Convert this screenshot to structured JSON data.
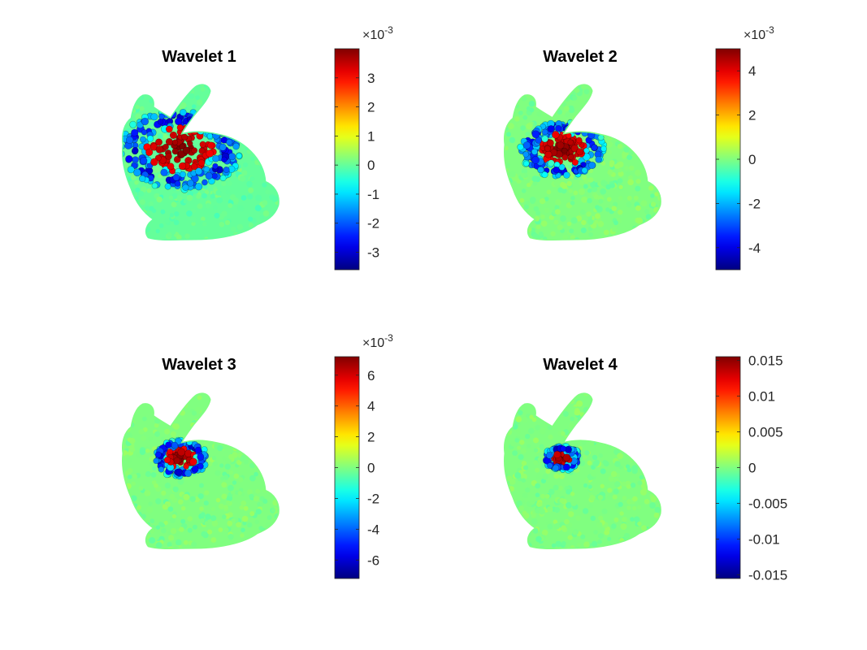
{
  "chart_data": [
    {
      "type": "scatter",
      "title": "Wavelet 1",
      "colormap": "jet",
      "colorbar": {
        "exponent": "-3",
        "lim": [
          -3.6,
          4.0
        ],
        "ticks": [
          -3,
          -2,
          -1,
          0,
          1,
          2,
          3
        ],
        "tick_labels": [
          "-3",
          "-2",
          "-1",
          "0",
          "1",
          "2",
          "3"
        ]
      },
      "hotspot": {
        "location": "back of neck",
        "peak": 4.0,
        "spread": "wide"
      }
    },
    {
      "type": "scatter",
      "title": "Wavelet 2",
      "colormap": "jet",
      "colorbar": {
        "exponent": "-3",
        "lim": [
          -5.0,
          5.0
        ],
        "ticks": [
          -4,
          -2,
          0,
          2,
          4
        ],
        "tick_labels": [
          "-4",
          "-2",
          "0",
          "2",
          "4"
        ]
      },
      "hotspot": {
        "location": "back of neck",
        "peak": 5.0,
        "spread": "medium"
      }
    },
    {
      "type": "scatter",
      "title": "Wavelet 3",
      "colormap": "jet",
      "colorbar": {
        "exponent": "-3",
        "lim": [
          -7.2,
          7.2
        ],
        "ticks": [
          -6,
          -4,
          -2,
          0,
          2,
          4,
          6
        ],
        "tick_labels": [
          "-6",
          "-4",
          "-2",
          "0",
          "2",
          "4",
          "6"
        ]
      },
      "hotspot": {
        "location": "back of neck",
        "peak": 7.2,
        "spread": "small"
      }
    },
    {
      "type": "scatter",
      "title": "Wavelet 4",
      "colormap": "jet",
      "colorbar": {
        "exponent": "",
        "lim": [
          -0.0155,
          0.0155
        ],
        "ticks": [
          -0.015,
          -0.01,
          -0.005,
          0,
          0.005,
          0.01,
          0.015
        ],
        "tick_labels": [
          "-0.015",
          "-0.01",
          "-0.005",
          "0",
          "0.005",
          "0.01",
          "0.015"
        ]
      },
      "hotspot": {
        "location": "back of neck",
        "peak": 0.0155,
        "spread": "tiny"
      }
    }
  ],
  "colors": {
    "background": "#ffffff",
    "axis": "#262626",
    "baseline_value_color": "#80ff80"
  }
}
